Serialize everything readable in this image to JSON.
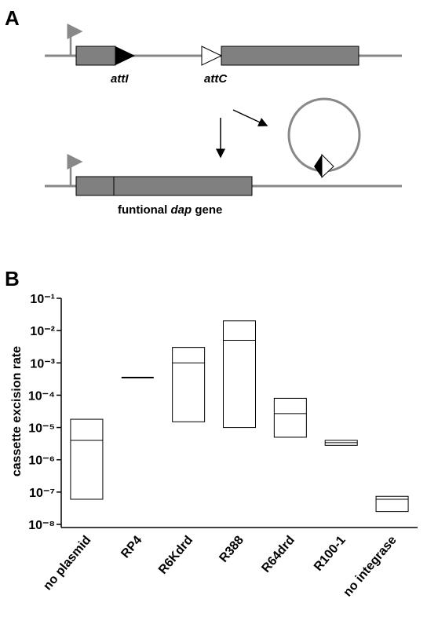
{
  "panel_a": {
    "label": "A",
    "att_i": "attI",
    "att_c": "attC",
    "gene_label": [
      "funtional",
      "dap",
      "gene"
    ]
  },
  "chart_data": {
    "type": "floating-box",
    "panel_label": "B",
    "y_label": "cassette excision rate",
    "categories": [
      "no plasmid",
      "RP4",
      "R6Kdrd",
      "R388",
      "R64drd",
      "R100-1",
      "no integrase"
    ],
    "min": [
      6e-08,
      0.00035,
      1.5e-05,
      1e-05,
      5e-06,
      2.8e-06,
      2.5e-08
    ],
    "median": [
      4e-06,
      0.00035,
      0.001,
      0.005,
      2.7e-05,
      3.4e-06,
      6e-08
    ],
    "max": [
      1.8e-05,
      0.00035,
      0.003,
      0.02,
      8e-05,
      4e-06,
      7.4e-08
    ],
    "yscale": "log",
    "ylim": [
      1e-08,
      0.1
    ],
    "yticks": [
      {
        "value": 0.1,
        "label": "10⁻¹"
      },
      {
        "value": 0.01,
        "label": "10⁻²"
      },
      {
        "value": 0.001,
        "label": "10⁻³"
      },
      {
        "value": 0.0001,
        "label": "10⁻⁴"
      },
      {
        "value": 1e-05,
        "label": "10⁻⁵"
      },
      {
        "value": 1e-06,
        "label": "10⁻⁶"
      },
      {
        "value": 1e-07,
        "label": "10⁻⁷"
      },
      {
        "value": 1e-08,
        "label": "10⁻⁸"
      }
    ],
    "color": "#000000"
  }
}
